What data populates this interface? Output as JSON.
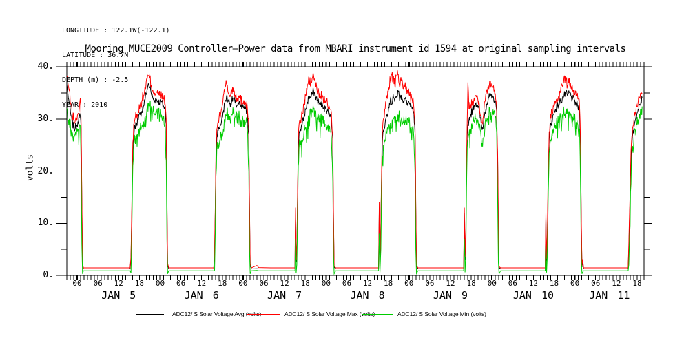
{
  "header": {
    "lines": [
      "LONGITUDE : 122.1W(-122.1)",
      "LATITUDE : 36.7N",
      "DEPTH (m) : -2.5",
      "YEAR : 2010"
    ]
  },
  "legend": {
    "items": [
      {
        "id": "avg",
        "label": "ADC12/ S Solar Voltage Avg (volts)",
        "color": "#000000"
      },
      {
        "id": "max",
        "label": "ADC12/ S Solar Voltage Max (volts)",
        "color": "#ff0000"
      },
      {
        "id": "min",
        "label": "ADC12/ S Solar Voltage Min (volts)",
        "color": "#00cc00"
      }
    ]
  },
  "chart_data": {
    "type": "line",
    "title": "Mooring MUCE2009 Controller–Power data from MBARI instrument id 1594 at original sampling intervals",
    "xlabel": "",
    "ylabel": "volts",
    "ylim": [
      0,
      40
    ],
    "ytick_major": [
      0,
      10,
      20,
      30,
      40
    ],
    "ytick_major_labels": [
      "0.",
      "10.",
      "20.",
      "30.",
      "40."
    ],
    "ytick_minor": [
      5,
      15,
      25,
      35
    ],
    "grid": false,
    "legend_position": "bottom",
    "x_axis": {
      "unit": "hours",
      "start": "2010-01-04 21:00",
      "end": "2010-01-11 20:00",
      "total_hours": 167,
      "hour_tick_step": 1,
      "label_step": 6,
      "first_label_hour": 3,
      "hour_label_cycle": [
        "00",
        "06",
        "12",
        "18"
      ],
      "day_labels": [
        {
          "text": "JAN 5",
          "h": 15
        },
        {
          "text": "JAN 6",
          "h": 39
        },
        {
          "text": "JAN 7",
          "h": 63
        },
        {
          "text": "JAN 8",
          "h": 87
        },
        {
          "text": "JAN 9",
          "h": 111
        },
        {
          "text": "JAN 10",
          "h": 135
        },
        {
          "text": "JAN 11",
          "h": 157
        }
      ]
    },
    "series": [
      {
        "id": "avg",
        "name": "ADC12/ S Solar Voltage Avg (volts)",
        "color": "#000000",
        "value_index": 1,
        "noise": 0.8,
        "seed": 7,
        "spiky": false
      },
      {
        "id": "max",
        "name": "ADC12/ S Solar Voltage Max (volts)",
        "color": "#ff0000",
        "value_index": 2,
        "noise": 1.1,
        "seed": 13,
        "spiky": false
      },
      {
        "id": "min",
        "name": "ADC12/ S Solar Voltage Min (volts)",
        "color": "#00cc00",
        "value_index": 3,
        "noise": 1.4,
        "seed": 29,
        "spiky": true
      }
    ],
    "sample_columns": [
      "hour_offset_from_start",
      "avg_volts",
      "max_volts",
      "min_volts"
    ],
    "samples": [
      [
        0,
        36.5,
        38.3,
        32
      ],
      [
        0.3,
        35,
        37,
        29.5
      ],
      [
        0.7,
        33,
        35.5,
        30
      ],
      [
        1.1,
        31,
        33,
        28
      ],
      [
        1.5,
        29.5,
        31.5,
        27.5
      ],
      [
        2,
        28.3,
        29.8,
        26.8
      ],
      [
        2.4,
        28.2,
        29.5,
        27
      ],
      [
        2.8,
        28.8,
        30,
        27.3
      ],
      [
        3.2,
        29.5,
        31,
        28
      ],
      [
        3.6,
        30.3,
        32,
        28.5
      ],
      [
        3.9,
        30.5,
        34,
        28.8
      ],
      [
        4.15,
        28,
        29,
        20
      ],
      [
        4.35,
        14,
        15,
        6
      ],
      [
        4.55,
        2,
        2.3,
        0.3
      ],
      [
        4.8,
        1.25,
        1.45,
        0.9
      ],
      [
        8,
        1.25,
        1.45,
        0.9
      ],
      [
        12,
        1.25,
        1.45,
        0.9
      ],
      [
        16,
        1.25,
        1.45,
        0.9
      ],
      [
        18.3,
        1.25,
        1.45,
        0.9
      ],
      [
        18.55,
        3,
        3.5,
        0.5
      ],
      [
        18.7,
        8,
        9,
        4
      ],
      [
        18.9,
        16,
        17,
        12
      ],
      [
        19.1,
        24,
        25.5,
        21
      ],
      [
        19.35,
        27.5,
        29,
        25.5
      ],
      [
        19.7,
        28.5,
        30,
        26
      ],
      [
        20.2,
        29.3,
        31,
        27
      ],
      [
        20.7,
        30,
        31.5,
        27.5
      ],
      [
        21.2,
        30.8,
        32.5,
        28
      ],
      [
        21.7,
        31.5,
        33.5,
        28.5
      ],
      [
        22.2,
        32.5,
        34.5,
        29.5
      ],
      [
        22.7,
        34,
        36,
        30.5
      ],
      [
        23.2,
        35.5,
        37.5,
        32
      ],
      [
        23.6,
        36.8,
        38.3,
        33
      ],
      [
        24,
        36,
        37.8,
        32.5
      ],
      [
        24.4,
        35,
        36.5,
        32
      ],
      [
        24.9,
        34,
        35.5,
        31.5
      ],
      [
        25.4,
        33.6,
        35,
        31
      ],
      [
        25.9,
        33.8,
        35.2,
        31.2
      ],
      [
        26.4,
        33.4,
        34.8,
        30.8
      ],
      [
        26.9,
        33.1,
        34.4,
        30.6
      ],
      [
        27.4,
        33.3,
        34.5,
        30.8
      ],
      [
        27.9,
        32.6,
        34,
        30
      ],
      [
        28.4,
        31.8,
        33,
        29
      ],
      [
        28.75,
        29,
        30,
        22
      ],
      [
        28.95,
        15,
        16,
        7
      ],
      [
        29.15,
        2,
        2.3,
        0.3
      ],
      [
        29.5,
        1.25,
        1.45,
        0.9
      ],
      [
        33,
        1.25,
        1.45,
        0.9
      ],
      [
        38,
        1.25,
        1.45,
        0.9
      ],
      [
        42.5,
        1.25,
        1.45,
        0.9
      ],
      [
        42.75,
        4,
        5,
        1
      ],
      [
        42.95,
        12,
        13,
        8
      ],
      [
        43.15,
        22,
        23.5,
        19
      ],
      [
        43.4,
        26.5,
        28,
        24.5
      ],
      [
        43.8,
        27.8,
        29.5,
        25.5
      ],
      [
        44.3,
        28.6,
        30.5,
        26
      ],
      [
        44.8,
        29.8,
        32,
        27
      ],
      [
        45.3,
        31.5,
        34.5,
        28
      ],
      [
        45.8,
        33.3,
        36.5,
        29.5
      ],
      [
        46.2,
        34.3,
        36.8,
        30.5
      ],
      [
        46.7,
        33.6,
        35,
        31
      ],
      [
        47.2,
        33,
        34.5,
        30.6
      ],
      [
        47.7,
        33.4,
        35.5,
        30.8
      ],
      [
        48.2,
        34,
        36,
        31
      ],
      [
        48.7,
        33.1,
        34.6,
        30.4
      ],
      [
        49.2,
        32.6,
        34,
        30
      ],
      [
        49.7,
        32.9,
        34.3,
        30.3
      ],
      [
        50.2,
        32.5,
        33.8,
        29.9
      ],
      [
        50.7,
        32.1,
        33.5,
        29.4
      ],
      [
        51.2,
        32.3,
        33.6,
        29.8
      ],
      [
        51.7,
        31.9,
        33.1,
        29.3
      ],
      [
        52.2,
        31.2,
        32.5,
        28.5
      ],
      [
        52.65,
        27,
        28,
        20
      ],
      [
        52.85,
        13,
        14,
        5
      ],
      [
        53.05,
        2,
        2.3,
        0.3
      ],
      [
        53.4,
        1.25,
        1.45,
        0.9
      ],
      [
        55,
        1.3,
        1.9,
        0.95
      ],
      [
        55.5,
        1.25,
        1.5,
        0.9
      ],
      [
        59,
        1.25,
        1.45,
        0.9
      ],
      [
        63,
        1.25,
        1.45,
        0.9
      ],
      [
        66,
        1.25,
        1.45,
        0.9
      ],
      [
        66.15,
        12,
        13,
        7
      ],
      [
        66.35,
        2.5,
        3,
        0.5
      ],
      [
        66.55,
        5,
        6,
        2
      ],
      [
        66.75,
        14,
        15,
        10
      ],
      [
        66.95,
        24,
        25.5,
        21
      ],
      [
        67.2,
        27.3,
        29,
        25
      ],
      [
        67.6,
        28,
        29.5,
        25.8
      ],
      [
        68.1,
        29,
        31,
        26.3
      ],
      [
        68.6,
        30.3,
        32.5,
        27.3
      ],
      [
        69.1,
        31.8,
        34.5,
        28.5
      ],
      [
        69.6,
        33.2,
        36.5,
        29.5
      ],
      [
        70.1,
        34.3,
        37.3,
        30.3
      ],
      [
        70.6,
        34,
        36.8,
        30.8
      ],
      [
        71.1,
        35,
        38,
        31.3
      ],
      [
        71.4,
        35.4,
        38.3,
        31.8
      ],
      [
        71.9,
        34.4,
        36.8,
        30.9
      ],
      [
        72.4,
        33.6,
        35.5,
        30.3
      ],
      [
        72.9,
        33.1,
        35,
        29.9
      ],
      [
        73.4,
        32.7,
        34.2,
        29.5
      ],
      [
        73.9,
        33,
        34.6,
        29.8
      ],
      [
        74.4,
        32.2,
        33.6,
        29
      ],
      [
        74.9,
        31.9,
        33.1,
        28.9
      ],
      [
        75.4,
        31.6,
        32.9,
        28.5
      ],
      [
        75.9,
        31.2,
        32.4,
        28.1
      ],
      [
        76.4,
        30.6,
        31.8,
        27.4
      ],
      [
        76.95,
        26,
        27,
        18
      ],
      [
        77.15,
        11,
        12,
        4
      ],
      [
        77.35,
        1.6,
        1.8,
        0.3
      ],
      [
        77.8,
        1.25,
        1.45,
        0.9
      ],
      [
        81,
        1.25,
        1.45,
        0.9
      ],
      [
        85,
        1.25,
        1.45,
        0.9
      ],
      [
        90.2,
        1.25,
        1.45,
        0.9
      ],
      [
        90.4,
        13,
        14,
        8
      ],
      [
        90.6,
        2.8,
        3.3,
        0.6
      ],
      [
        90.85,
        9,
        10,
        5
      ],
      [
        91.05,
        18,
        19.5,
        15
      ],
      [
        91.3,
        25.5,
        27.5,
        23
      ],
      [
        91.6,
        27.8,
        30,
        25
      ],
      [
        92.1,
        29.3,
        32,
        25.8
      ],
      [
        92.6,
        30.8,
        34,
        27.3
      ],
      [
        93.1,
        32.3,
        36,
        28.3
      ],
      [
        93.6,
        33.8,
        37.5,
        29.3
      ],
      [
        94,
        32.8,
        38.5,
        28.3
      ],
      [
        94.4,
        34.8,
        37.8,
        30.3
      ],
      [
        94.9,
        33.3,
        36.3,
        29.3
      ],
      [
        95.4,
        34.3,
        38.2,
        29.8
      ],
      [
        95.9,
        35.3,
        38.6,
        30.8
      ],
      [
        96.4,
        33.8,
        36.3,
        29.8
      ],
      [
        96.9,
        34.6,
        37.5,
        30.3
      ],
      [
        97.4,
        33.3,
        35.8,
        29.3
      ],
      [
        97.9,
        33.9,
        37,
        29.8
      ],
      [
        98.4,
        32.8,
        34.8,
        28.8
      ],
      [
        98.9,
        33.4,
        35.8,
        29.3
      ],
      [
        99.4,
        32.3,
        34.3,
        28.3
      ],
      [
        99.9,
        31.9,
        33.8,
        27.9
      ],
      [
        100.3,
        31.4,
        33,
        27.4
      ],
      [
        100.75,
        27,
        28,
        19
      ],
      [
        100.95,
        13,
        14,
        5
      ],
      [
        101.15,
        1.7,
        1.9,
        0.35
      ],
      [
        101.6,
        1.25,
        1.45,
        0.9
      ],
      [
        105,
        1.25,
        1.45,
        0.9
      ],
      [
        110,
        1.25,
        1.45,
        0.9
      ],
      [
        114.8,
        1.25,
        1.45,
        0.9
      ],
      [
        115,
        12,
        13,
        7
      ],
      [
        115.2,
        3,
        3.5,
        0.6
      ],
      [
        115.45,
        8,
        9,
        4
      ],
      [
        115.65,
        20,
        22,
        17
      ],
      [
        115.85,
        27,
        30,
        24.5
      ],
      [
        116.05,
        29,
        37,
        26
      ],
      [
        116.35,
        29.8,
        32,
        27
      ],
      [
        116.85,
        30.8,
        32.8,
        28
      ],
      [
        117.35,
        31.8,
        33.4,
        28.9
      ],
      [
        117.85,
        32.6,
        34,
        29.6
      ],
      [
        118.35,
        33.1,
        34.5,
        30.1
      ],
      [
        118.85,
        32.6,
        34,
        29.8
      ],
      [
        119.35,
        31.3,
        32.8,
        28.4
      ],
      [
        119.85,
        29.3,
        30.8,
        26.6
      ],
      [
        120.15,
        27.9,
        29.3,
        25.4
      ],
      [
        120.55,
        29.1,
        30.6,
        26.4
      ],
      [
        120.95,
        31.3,
        33.3,
        28.4
      ],
      [
        121.45,
        32.9,
        35.4,
        29.6
      ],
      [
        121.95,
        33.9,
        36.4,
        30.6
      ],
      [
        122.45,
        34.4,
        37,
        31.1
      ],
      [
        122.95,
        33.9,
        36.8,
        30.6
      ],
      [
        123.45,
        34.1,
        36.4,
        30.8
      ],
      [
        123.95,
        33.4,
        34.9,
        30.1
      ],
      [
        124.35,
        31.5,
        32.5,
        27.5
      ],
      [
        124.65,
        22,
        23,
        14
      ],
      [
        124.85,
        9,
        10,
        2.5
      ],
      [
        125.05,
        1.5,
        1.7,
        0.3
      ],
      [
        125.5,
        1.25,
        1.45,
        0.9
      ],
      [
        129,
        1.25,
        1.45,
        0.9
      ],
      [
        134,
        1.25,
        1.45,
        0.9
      ],
      [
        138.4,
        1.25,
        1.45,
        0.9
      ],
      [
        138.6,
        11,
        12,
        6
      ],
      [
        138.8,
        2.7,
        3.2,
        0.55
      ],
      [
        139.05,
        8,
        9,
        4
      ],
      [
        139.3,
        19,
        21,
        16
      ],
      [
        139.55,
        26,
        27.5,
        23.5
      ],
      [
        139.85,
        28.4,
        30,
        25.8
      ],
      [
        140.35,
        29.8,
        31.4,
        27.1
      ],
      [
        140.85,
        30.9,
        32.4,
        28.1
      ],
      [
        141.35,
        31.9,
        33.4,
        28.9
      ],
      [
        141.85,
        32.4,
        33.9,
        29.4
      ],
      [
        142.35,
        32.9,
        34.4,
        29.9
      ],
      [
        142.85,
        33.4,
        35.4,
        30.3
      ],
      [
        143.35,
        33.9,
        36.4,
        30.8
      ],
      [
        143.85,
        34.4,
        38,
        31.1
      ],
      [
        144.35,
        34.9,
        37.4,
        31.4
      ],
      [
        144.85,
        34.4,
        36.4,
        30.9
      ],
      [
        145.35,
        35.1,
        37.8,
        31.4
      ],
      [
        145.85,
        34.4,
        35.9,
        30.9
      ],
      [
        146.35,
        33.9,
        35.4,
        30.4
      ],
      [
        146.85,
        33.4,
        34.9,
        29.9
      ],
      [
        147.35,
        32.9,
        34.4,
        29.4
      ],
      [
        147.85,
        32.4,
        33.9,
        28.9
      ],
      [
        148.35,
        31.4,
        32.4,
        27.9
      ],
      [
        148.65,
        24,
        25,
        16
      ],
      [
        148.85,
        10,
        11,
        3
      ],
      [
        149.05,
        1.6,
        1.8,
        0.3
      ],
      [
        149.25,
        2.6,
        3.1,
        0.6
      ],
      [
        149.5,
        1.25,
        1.45,
        0.9
      ],
      [
        153,
        1.25,
        1.45,
        0.9
      ],
      [
        158,
        1.25,
        1.45,
        0.9
      ],
      [
        162.4,
        1.25,
        1.45,
        0.9
      ],
      [
        162.6,
        5,
        6,
        2
      ],
      [
        162.85,
        12,
        13,
        8
      ],
      [
        163.1,
        19,
        20.5,
        16
      ],
      [
        163.35,
        24,
        25.5,
        21.5
      ],
      [
        163.7,
        26.8,
        28.3,
        24.8
      ],
      [
        164.1,
        28.4,
        29.9,
        26.4
      ],
      [
        164.5,
        29.8,
        31.3,
        27.8
      ],
      [
        164.9,
        30.9,
        32.4,
        28.9
      ],
      [
        165.3,
        31.9,
        33.4,
        29.9
      ],
      [
        165.7,
        32.8,
        34.1,
        30.9
      ],
      [
        166.1,
        33.4,
        34.6,
        31.6
      ],
      [
        166.45,
        34,
        35,
        32.4
      ]
    ]
  }
}
